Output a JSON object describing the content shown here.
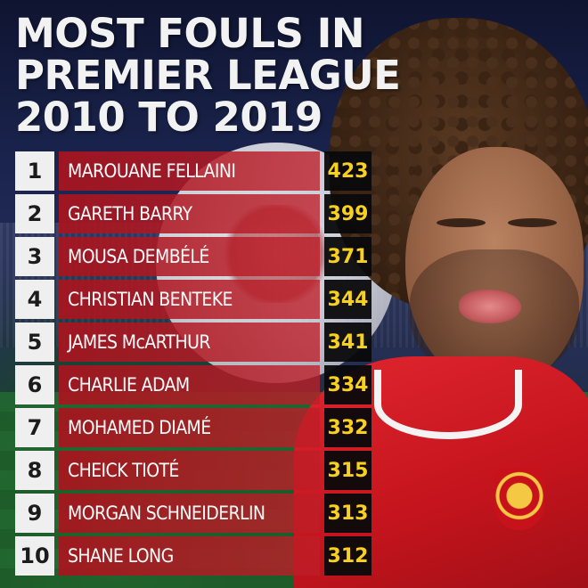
{
  "title": {
    "line1": "MOST FOULS IN",
    "line2": "PREMIER LEAGUE",
    "line3": "2010 TO 2019"
  },
  "rows": [
    {
      "rank": "1",
      "name": "MAROUANE FELLAINI",
      "fouls": "423"
    },
    {
      "rank": "2",
      "name": "GARETH BARRY",
      "fouls": "399"
    },
    {
      "rank": "3",
      "name": "MOUSA DEMBÉLÉ",
      "fouls": "371"
    },
    {
      "rank": "4",
      "name": "CHRISTIAN BENTEKE",
      "fouls": "344"
    },
    {
      "rank": "5",
      "name": "JAMES McARTHUR",
      "fouls": "341"
    },
    {
      "rank": "6",
      "name": "CHARLIE ADAM",
      "fouls": "334"
    },
    {
      "rank": "7",
      "name": "MOHAMED DIAMÉ",
      "fouls": "332"
    },
    {
      "rank": "8",
      "name": "CHEICK TIOTÉ",
      "fouls": "315"
    },
    {
      "rank": "9",
      "name": "MORGAN SCHNEIDERLIN",
      "fouls": "313"
    },
    {
      "rank": "10",
      "name": "SHANE LONG",
      "fouls": "312"
    }
  ],
  "colors": {
    "rank_bg": "#efefef",
    "name_bg": "#b3141f",
    "value_bg": "#0a0a0c",
    "value_text": "#f7d11e",
    "title_text": "#f2f2f2"
  }
}
